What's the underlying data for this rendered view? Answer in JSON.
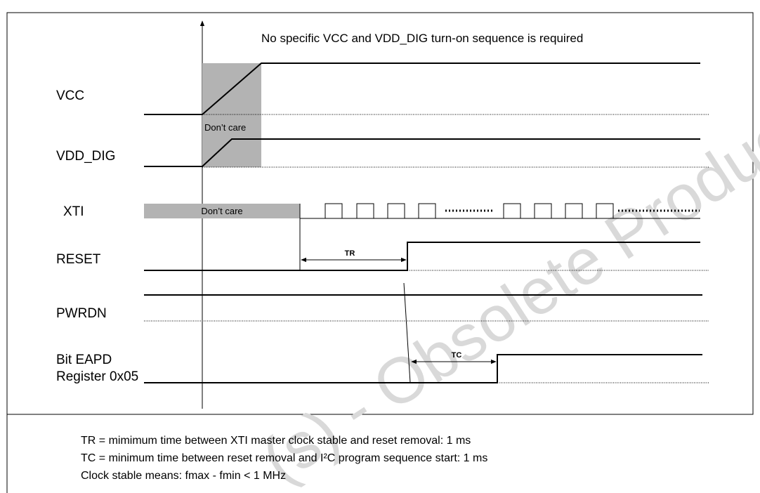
{
  "header": {
    "note": "No specific VCC and VDD_DIG turn-on sequence is required"
  },
  "signals": [
    {
      "label": "VCC"
    },
    {
      "label": "VDD_DIG"
    },
    {
      "label": "XTI"
    },
    {
      "label": "RESET"
    },
    {
      "label": "PWRDN"
    },
    {
      "label_lines": [
        "Bit EAPD",
        "Register 0x05"
      ]
    }
  ],
  "dont_care": [
    "Don’t care",
    "Don’t care"
  ],
  "timings": [
    "TR",
    "TC"
  ],
  "notes": [
    "TR = mimimum time between XTI master clock stable and reset removal: 1 ms",
    "TC = minimum time between reset removal and I²C program sequence start: 1 ms",
    "Clock stable means: fmax - fmin < 1 MHz"
  ],
  "watermark": "(s) - Obsolete Product(s)"
}
